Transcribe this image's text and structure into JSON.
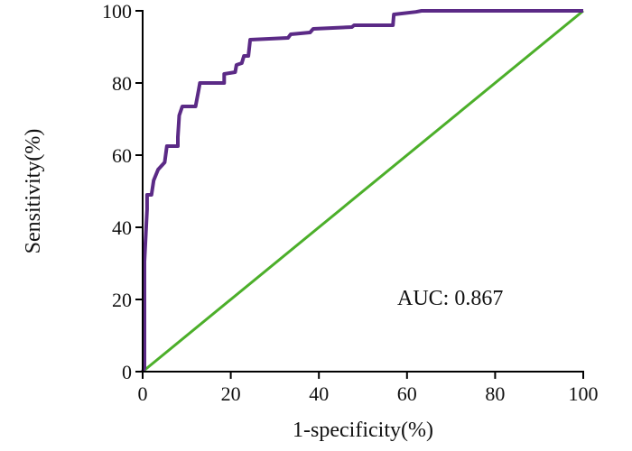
{
  "chart_data": {
    "type": "line",
    "title": "",
    "xlabel": "1-specificity(%)",
    "ylabel": "Sensitivity(%)",
    "xlim": [
      0,
      100
    ],
    "ylim": [
      0,
      100
    ],
    "xticks": [
      "0",
      "20",
      "40",
      "60",
      "80",
      "100"
    ],
    "yticks": [
      "0",
      "20",
      "40",
      "60",
      "80",
      "100"
    ],
    "grid": false,
    "annotation": "AUC: 0.867",
    "series": [
      {
        "name": "ROC curve",
        "color": "#5b2a86",
        "points": [
          [
            0,
            0
          ],
          [
            0.4,
            1
          ],
          [
            0.4,
            30.5
          ],
          [
            1,
            45
          ],
          [
            1,
            49
          ],
          [
            2,
            49
          ],
          [
            2.5,
            53
          ],
          [
            3.5,
            56
          ],
          [
            5,
            58
          ],
          [
            5.5,
            62.5
          ],
          [
            8,
            62.5
          ],
          [
            8,
            65
          ],
          [
            8.3,
            71
          ],
          [
            9,
            73.5
          ],
          [
            12,
            73.5
          ],
          [
            12.7,
            78
          ],
          [
            13,
            80
          ],
          [
            18.5,
            80
          ],
          [
            18.5,
            82.5
          ],
          [
            21,
            83
          ],
          [
            21.3,
            85
          ],
          [
            22.5,
            85.5
          ],
          [
            23,
            87.5
          ],
          [
            24,
            87.5
          ],
          [
            24.4,
            92
          ],
          [
            33,
            92.5
          ],
          [
            33.6,
            93.5
          ],
          [
            38,
            94
          ],
          [
            38.7,
            95
          ],
          [
            47.5,
            95.5
          ],
          [
            48,
            96
          ],
          [
            56.8,
            96
          ],
          [
            57,
            99
          ],
          [
            62,
            99.7
          ],
          [
            63.3,
            100
          ],
          [
            99.4,
            100
          ],
          [
            100,
            100
          ]
        ]
      },
      {
        "name": "Reference line",
        "color": "#4caf2a",
        "points": [
          [
            0,
            0
          ],
          [
            100,
            100
          ]
        ]
      }
    ]
  }
}
